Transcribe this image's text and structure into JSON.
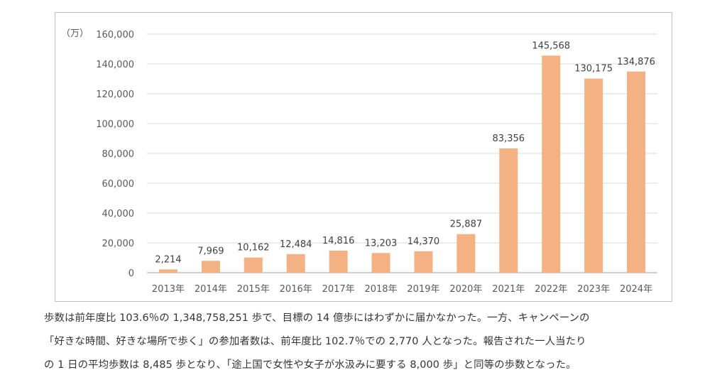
{
  "chart_data": {
    "type": "bar",
    "unit_label": "（万）",
    "categories": [
      "2013年",
      "2014年",
      "2015年",
      "2016年",
      "2017年",
      "2018年",
      "2019年",
      "2020年",
      "2021年",
      "2022年",
      "2023年",
      "2024年"
    ],
    "values": [
      2214,
      7969,
      10162,
      12484,
      14816,
      13203,
      14370,
      25887,
      83356,
      145568,
      130175,
      134876
    ],
    "value_labels": [
      "2,214",
      "7,969",
      "10,162",
      "12,484",
      "14,816",
      "13,203",
      "14,370",
      "25,887",
      "83,356",
      "145,568",
      "130,175",
      "134,876"
    ],
    "ylim": [
      0,
      160000
    ],
    "yticks": [
      0,
      20000,
      40000,
      60000,
      80000,
      100000,
      120000,
      140000,
      160000
    ],
    "ytick_labels": [
      "0",
      "20,000",
      "40,000",
      "60,000",
      "80,000",
      "100,000",
      "120,000",
      "140,000",
      "160,000"
    ],
    "grid": true,
    "bar_color": "#f4b183",
    "grid_color": "#d9d9d9",
    "axis_color": "#bfbfbf"
  },
  "caption": {
    "lines": [
      "歩数は前年度比 103.6％の 1,348,758,251 歩で、目標の 14 億歩にはわずかに届かなかった。一方、キャンペーンの",
      "「好きな時間、好きな場所で歩く」の参加者数は、前年度比 102.7％での 2,770 人となった。報告された一人当たり",
      "の 1 日の平均歩数は 8,485 歩となり、「途上国で女性や女子が水汲みに要する 8,000 歩」と同等の歩数となった。"
    ]
  }
}
